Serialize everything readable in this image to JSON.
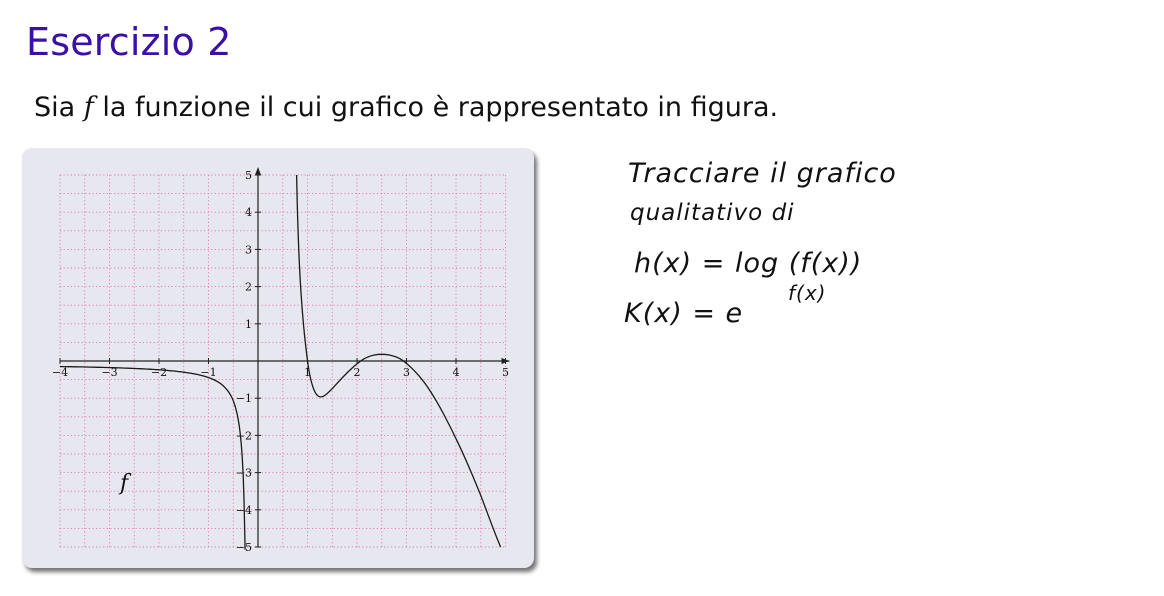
{
  "slide": {
    "title": "Esercizio 2",
    "intro_before": "Sia ",
    "intro_var": "f",
    "intro_after": " la funzione il cui grafico è rappresentato in figura."
  },
  "graph": {
    "function_label": "f",
    "x_ticks": [
      "−4",
      "−3",
      "−2",
      "−1",
      "1",
      "2",
      "3",
      "4",
      "5"
    ],
    "y_ticks": [
      "5",
      "4",
      "3",
      "2",
      "1",
      "−1",
      "−2",
      "−3",
      "−4",
      "−5"
    ],
    "colors": {
      "panel": "#e7e7ef",
      "grid": "#e07aa8",
      "curve": "#1a1a1a",
      "title": "#3a10a8"
    }
  },
  "notes": {
    "line1": "Tracciare il grafico",
    "line2": "qualitativo di",
    "line3": "h(x) = log (f(x))",
    "line4_base": "K(x) =  e",
    "line4_exp": "f(x)"
  }
}
